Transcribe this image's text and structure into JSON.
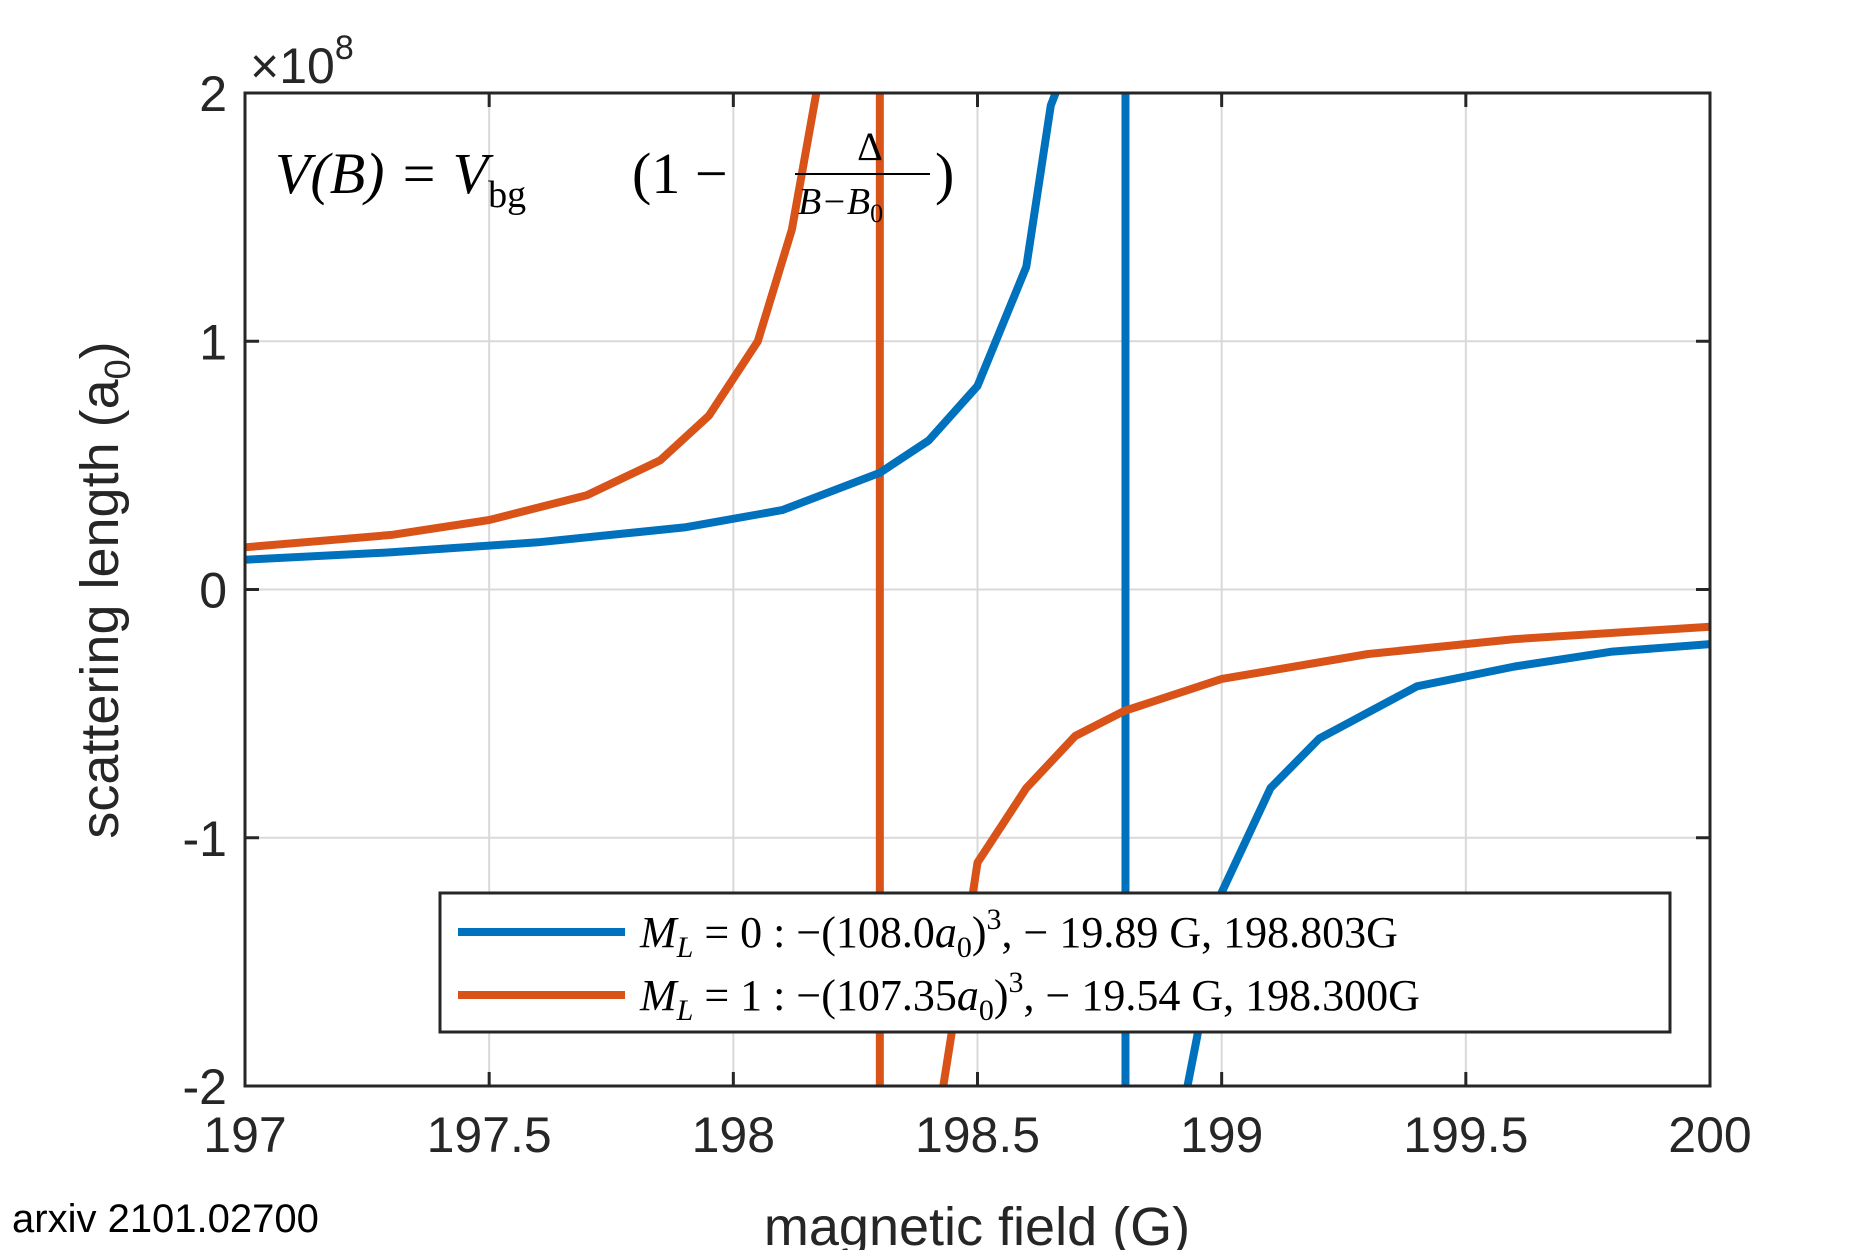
{
  "colors": {
    "series_blue": "#0072BD",
    "series_orange": "#D95319",
    "grid": "#d9d9d9",
    "axis": "#262626"
  },
  "source_note": "arxiv 2101.02700",
  "chart_data": {
    "type": "line",
    "xlabel": "magnetic field (G)",
    "ylabel": "scattering length (a",
    "ylabel_subscript": "0",
    "ylabel_close": ")",
    "y_exponent_label": "×10",
    "y_exponent_power": "8",
    "xlim": [
      197,
      200
    ],
    "ylim": [
      -2,
      2
    ],
    "x_ticks": [
      197,
      197.5,
      198,
      198.5,
      199,
      199.5,
      200
    ],
    "x_tick_labels": [
      "197",
      "197.5",
      "198",
      "198.5",
      "199",
      "199.5",
      "200"
    ],
    "y_ticks": [
      -2,
      -1,
      0,
      1,
      2
    ],
    "y_tick_labels": [
      "-2",
      "-1",
      "0",
      "1",
      "2"
    ],
    "grid": true,
    "legend_position": "bottom-right",
    "formula": {
      "lhs": "V(B) = V",
      "sub": "bg",
      "open": "(1 −",
      "numerator": "Δ",
      "denominator": "B−B",
      "denominator_sub": "0",
      "close": ")"
    },
    "series": [
      {
        "name": "M_L = 0 : −(108.0a_0)^3,  − 19.89 G,  198.803G",
        "legend_parts": {
          "m": "M",
          "m_sub": "L",
          "eq": " = 0 : −(108.0",
          "a": "a",
          "a_sub": "0",
          "pow_open": ")",
          "pow": "3",
          "rest": ",   − 19.89 G,  198.803G"
        },
        "color_key": "series_blue",
        "resonance_B0": 198.803,
        "points": [
          [
            197.0,
            0.12
          ],
          [
            197.3,
            0.15
          ],
          [
            197.6,
            0.19
          ],
          [
            197.9,
            0.25
          ],
          [
            198.1,
            0.32
          ],
          [
            198.3,
            0.47
          ],
          [
            198.4,
            0.6
          ],
          [
            198.5,
            0.82
          ],
          [
            198.6,
            1.3
          ],
          [
            198.65,
            1.95
          ],
          [
            198.66,
            2.0
          ],
          [
            198.93,
            -2.0
          ],
          [
            198.95,
            -1.8
          ],
          [
            199.0,
            -1.22
          ],
          [
            199.1,
            -0.8
          ],
          [
            199.2,
            -0.6
          ],
          [
            199.4,
            -0.39
          ],
          [
            199.6,
            -0.31
          ],
          [
            199.8,
            -0.25
          ],
          [
            200.0,
            -0.22
          ]
        ]
      },
      {
        "name": "M_L = 1 : −(107.35a_0)^3,  − 19.54 G,  198.300G",
        "legend_parts": {
          "m": "M",
          "m_sub": "L",
          "eq": " = 1 : −(107.35",
          "a": "a",
          "a_sub": "0",
          "pow_open": ")",
          "pow": "3",
          "rest": ",   − 19.54 G,  198.300G"
        },
        "color_key": "series_orange",
        "resonance_B0": 198.3,
        "points": [
          [
            197.0,
            0.17
          ],
          [
            197.3,
            0.22
          ],
          [
            197.5,
            0.28
          ],
          [
            197.7,
            0.38
          ],
          [
            197.85,
            0.52
          ],
          [
            197.95,
            0.7
          ],
          [
            198.05,
            1.0
          ],
          [
            198.12,
            1.45
          ],
          [
            198.17,
            2.0
          ],
          [
            198.43,
            -2.0
          ],
          [
            198.45,
            -1.75
          ],
          [
            198.5,
            -1.1
          ],
          [
            198.6,
            -0.8
          ],
          [
            198.7,
            -0.59
          ],
          [
            198.8,
            -0.49
          ],
          [
            199.0,
            -0.36
          ],
          [
            199.3,
            -0.26
          ],
          [
            199.6,
            -0.2
          ],
          [
            200.0,
            -0.15
          ]
        ]
      }
    ]
  }
}
